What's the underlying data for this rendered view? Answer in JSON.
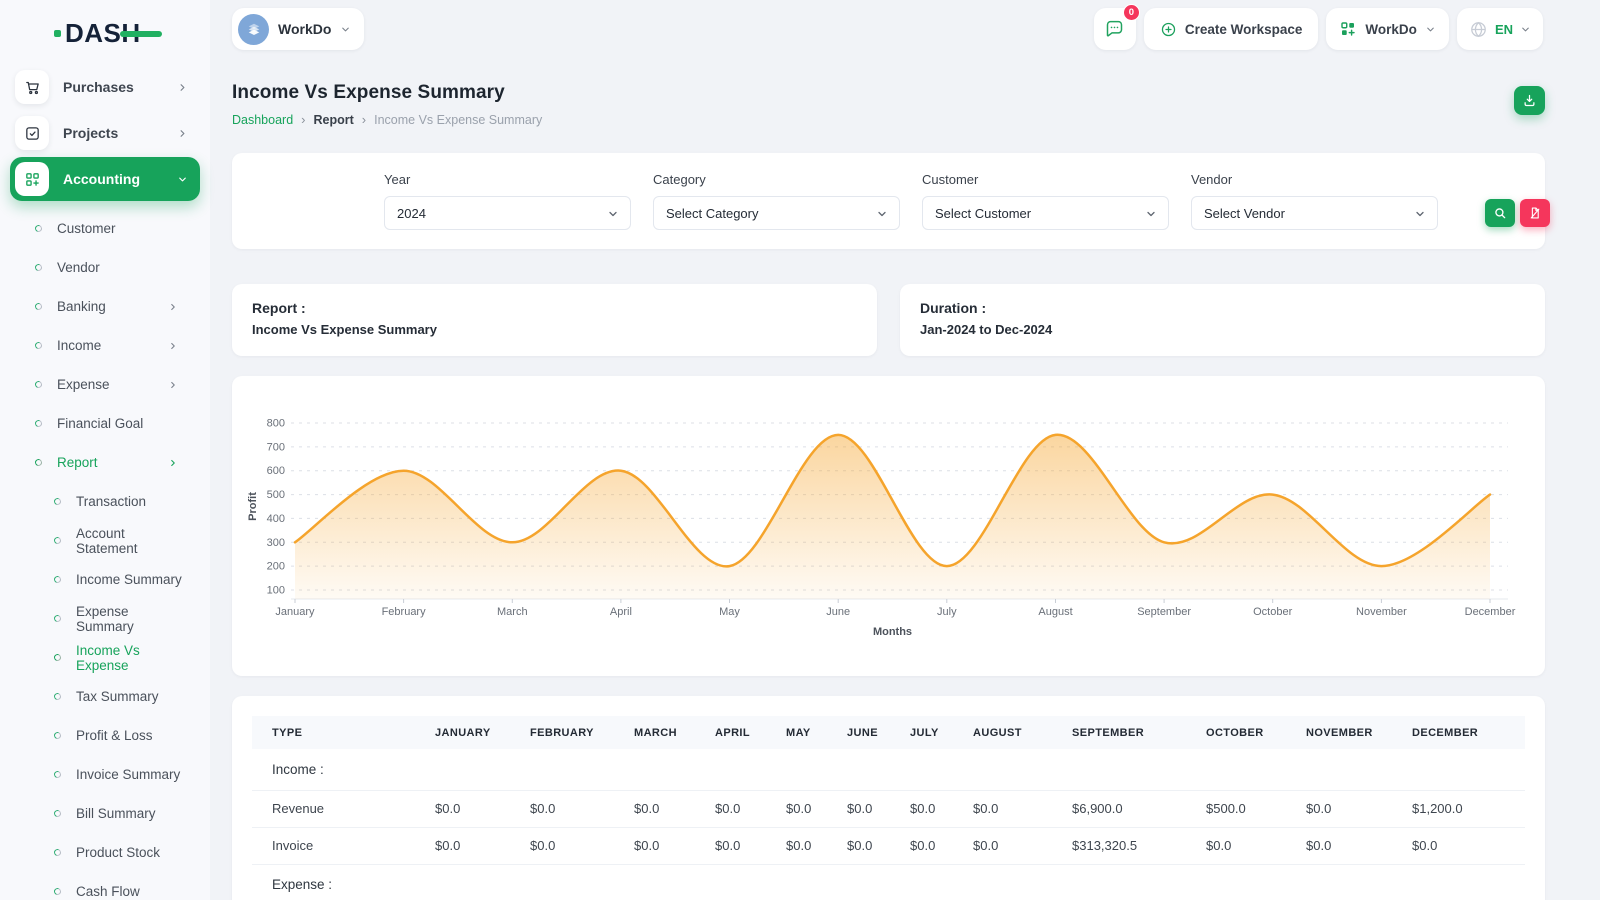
{
  "brand": {
    "logo_text": "DASH"
  },
  "header": {
    "workspace_button": {
      "label": "WorkDo"
    },
    "messages_badge": "0",
    "create_workspace_label": "Create Workspace",
    "workdo_label": "WorkDo",
    "language": "EN"
  },
  "sidebar": {
    "items": [
      {
        "label": "Purchases",
        "icon": "cart-icon",
        "chevron": true,
        "active": false,
        "expanded": false
      },
      {
        "label": "Projects",
        "icon": "checkbox-icon",
        "chevron": true,
        "active": false,
        "expanded": false
      },
      {
        "label": "Accounting",
        "icon": "grid-plus-icon",
        "chevron": true,
        "active": true,
        "expanded": true
      }
    ],
    "accounting_children": [
      {
        "label": "Customer",
        "chevron": false,
        "active": false
      },
      {
        "label": "Vendor",
        "chevron": false,
        "active": false
      },
      {
        "label": "Banking",
        "chevron": true,
        "active": false
      },
      {
        "label": "Income",
        "chevron": true,
        "active": false
      },
      {
        "label": "Expense",
        "chevron": true,
        "active": false
      },
      {
        "label": "Financial Goal",
        "chevron": false,
        "active": false
      },
      {
        "label": "Report",
        "chevron": true,
        "active": true
      }
    ],
    "report_children": [
      "Transaction",
      "Account Statement",
      "Income Summary",
      "Expense Summary",
      "Income Vs Expense",
      "Tax Summary",
      "Profit & Loss",
      "Invoice Summary",
      "Bill Summary",
      "Product Stock",
      "Cash Flow"
    ],
    "active_report_child": "Income Vs Expense"
  },
  "page": {
    "title": "Income Vs Expense Summary",
    "breadcrumb": [
      "Dashboard",
      "Report",
      "Income Vs Expense Summary"
    ]
  },
  "filters": {
    "fields": [
      {
        "label": "Year",
        "value": "2024"
      },
      {
        "label": "Category",
        "value": "Select Category"
      },
      {
        "label": "Customer",
        "value": "Select Customer"
      },
      {
        "label": "Vendor",
        "value": "Select Vendor"
      }
    ]
  },
  "summary_cards": [
    {
      "title": "Report :",
      "value": "Income Vs Expense Summary"
    },
    {
      "title": "Duration :",
      "value": "Jan-2024 to Dec-2024"
    }
  ],
  "chart_data": {
    "type": "area",
    "x": [
      "January",
      "February",
      "March",
      "April",
      "May",
      "June",
      "July",
      "August",
      "September",
      "October",
      "November",
      "December"
    ],
    "series": [
      {
        "name": "Profit",
        "values": [
          300,
          600,
          300,
          600,
          200,
          750,
          200,
          750,
          300,
          500,
          200,
          500
        ]
      }
    ],
    "title": "",
    "xlabel": "Months",
    "ylabel": "Profit",
    "ylim": [
      100,
      800
    ],
    "yticks": [
      100,
      200,
      300,
      400,
      500,
      600,
      700,
      800
    ],
    "grid": "dashed horizontal",
    "legend": "none",
    "line_color": "#F5A42C"
  },
  "table": {
    "headers": [
      "TYPE",
      "JANUARY",
      "FEBRUARY",
      "MARCH",
      "APRIL",
      "MAY",
      "JUNE",
      "JULY",
      "AUGUST",
      "SEPTEMBER",
      "OCTOBER",
      "NOVEMBER",
      "DECEMBER"
    ],
    "sections": [
      {
        "label": "Income :",
        "rows": [
          {
            "type": "Revenue",
            "values": [
              "$0.0",
              "$0.0",
              "$0.0",
              "$0.0",
              "$0.0",
              "$0.0",
              "$0.0",
              "$0.0",
              "$6,900.0",
              "$500.0",
              "$0.0",
              "$1,200.0"
            ]
          },
          {
            "type": "Invoice",
            "values": [
              "$0.0",
              "$0.0",
              "$0.0",
              "$0.0",
              "$0.0",
              "$0.0",
              "$0.0",
              "$0.0",
              "$313,320.5",
              "$0.0",
              "$0.0",
              "$0.0"
            ]
          }
        ]
      },
      {
        "label": "Expense :",
        "rows": []
      }
    ]
  },
  "colors": {
    "primary_green": "#17A35B",
    "accent_pink": "#F5365C",
    "badge_red": "#F5365C",
    "chart_line": "#F5A42C",
    "avatar_blue": "#7FA7D8"
  }
}
